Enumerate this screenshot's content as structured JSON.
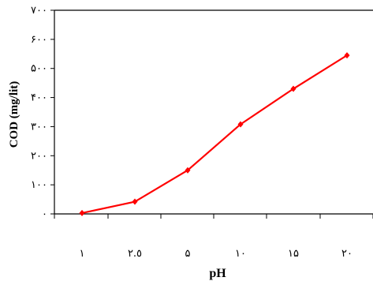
{
  "chart_data": {
    "type": "line",
    "xlabel": "pH",
    "ylabel": "COD (mg/lit)",
    "x_tick_labels": [
      "١",
      "٢.٥",
      "۵",
      "١٠",
      "١۵",
      "٢٠"
    ],
    "y_tick_labels": [
      "٠",
      "١٠٠",
      "٢٠٠",
      "٣٠٠",
      "۴٠٠",
      "۵٠٠",
      "۶٠٠",
      "٧٠٠"
    ],
    "ylim": [
      0,
      700
    ],
    "y_ticks": [
      0,
      100,
      200,
      300,
      400,
      500,
      600,
      700
    ],
    "series": [
      {
        "values": [
          3,
          42,
          150,
          308,
          430,
          545
        ]
      }
    ],
    "colors": {
      "line": "#ff0000",
      "marker": "#ff0000",
      "axis": "#000000"
    },
    "grid": false
  }
}
